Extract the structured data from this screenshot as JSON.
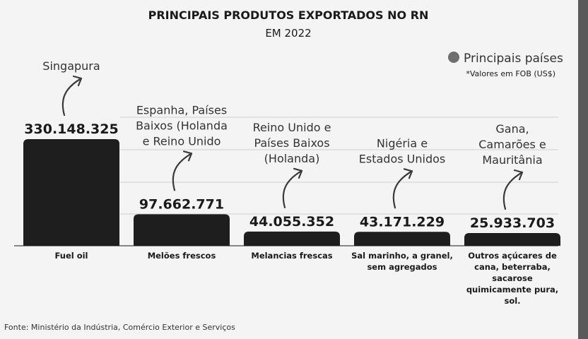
{
  "chart_data": {
    "type": "bar",
    "title": "PRINCIPAIS PRODUTOS EXPORTADOS NO RN",
    "subtitle": "EM 2022",
    "legend": "Principais países",
    "legend_position": "top-right",
    "note": "*Valores em FOB (US$)",
    "source": "Fonte: Ministério da Indústria, Comércio Exterior e Serviços",
    "grid": true,
    "ylim": [
      0,
      330148325
    ],
    "categories": [
      [
        "Fuel oil"
      ],
      [
        "Melões frescos"
      ],
      [
        "Melancias frescas"
      ],
      [
        "Sal marinho, a granel,",
        "sem agregados"
      ],
      [
        "Outros açúcares de",
        "cana, beterraba,",
        "sacarose",
        "quimicamente pura,",
        "sol."
      ]
    ],
    "values": [
      330148325,
      97662771,
      44055352,
      43171229,
      25933703
    ],
    "value_labels": [
      "330.148.325",
      "97.662.771",
      "44.055.352",
      "43.171.229",
      "25.933.703"
    ],
    "countries": [
      [
        "Singapura"
      ],
      [
        "Espanha, Países",
        "Baixos (Holanda",
        "e Reino Unido"
      ],
      [
        "Reino Unido e",
        "Países Baixos",
        "(Holanda)"
      ],
      [
        "Nigéria e",
        "Estados Unidos"
      ],
      [
        "Gana,",
        "Camarões e",
        "Mauritânia"
      ]
    ],
    "colors": {
      "bar": "#1e1e1e",
      "text": "#1a1a1a",
      "muted": "#333333",
      "grid": "#cfcfcf",
      "legend_dot": "#6e6e6e",
      "background": "#f4f4f4"
    }
  }
}
